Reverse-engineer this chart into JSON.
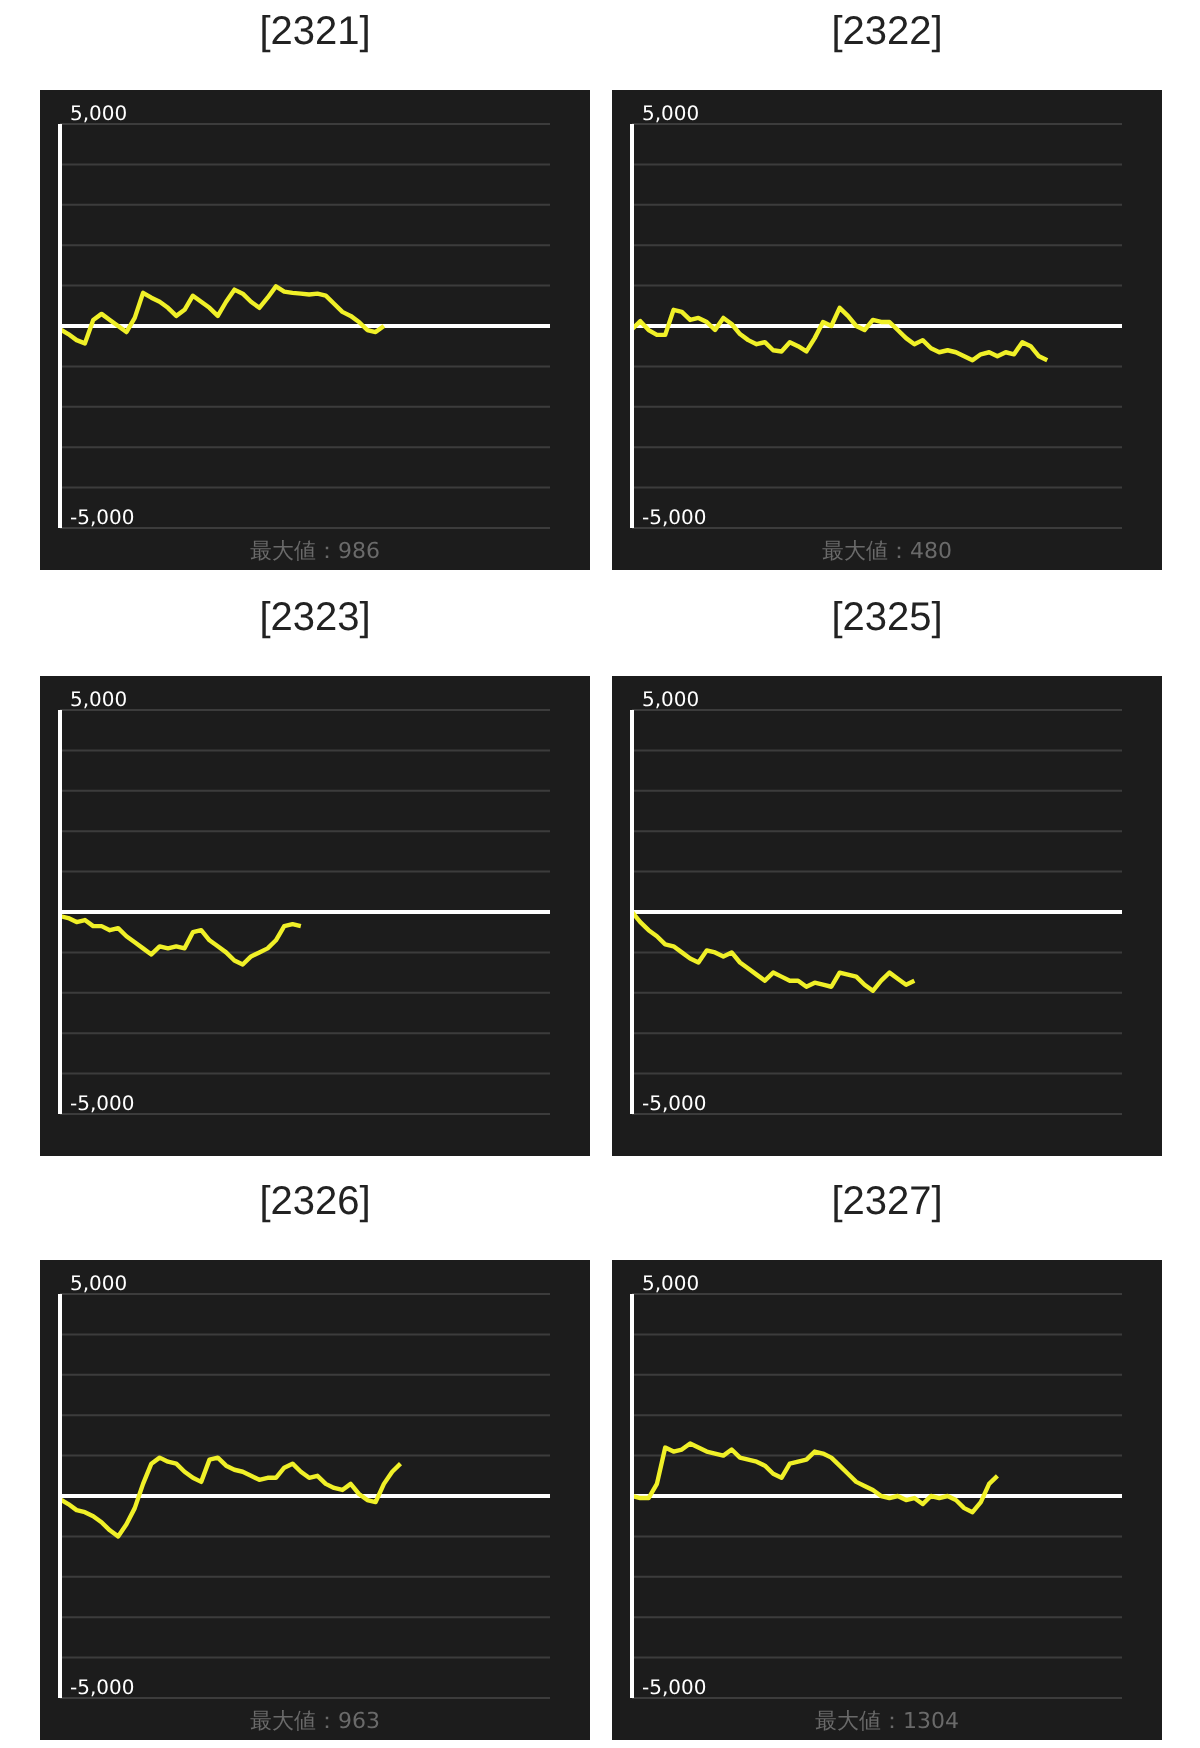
{
  "chart_data": [
    {
      "type": "line",
      "title": "[2321]",
      "categories": [
        null,
        null,
        null,
        null,
        null,
        null,
        null,
        null,
        null,
        null,
        null,
        null,
        null,
        null,
        null,
        null,
        null,
        null,
        null,
        null,
        null,
        null,
        null,
        null,
        null,
        null,
        null,
        null,
        null,
        null,
        null,
        null,
        null,
        null,
        null,
        null,
        null,
        null,
        null,
        null,
        null,
        null,
        null,
        null,
        null,
        null,
        null,
        null,
        null,
        null,
        null,
        null,
        null,
        null,
        null,
        null,
        null,
        null,
        null,
        null
      ],
      "series": [
        {
          "color": "#f0f028",
          "values": [
            -80,
            -200,
            -350,
            -430,
            150,
            300,
            150,
            0,
            -150,
            200,
            820,
            700,
            600,
            450,
            250,
            400,
            750,
            600,
            450,
            250,
            600,
            900,
            800,
            600,
            450,
            700,
            980,
            850,
            820,
            800,
            780,
            800,
            750,
            550,
            350,
            250,
            100,
            -100,
            -150,
            0,
            null,
            null,
            null,
            null,
            null,
            null,
            null,
            null,
            null,
            null,
            null,
            null,
            null,
            null,
            null,
            null,
            null,
            null,
            null,
            null
          ]
        }
      ],
      "ylim": [
        -5000,
        5000
      ],
      "yticks": [
        {
          "value": -5000,
          "label": "-5,000"
        },
        {
          "value": -4000,
          "label": null
        },
        {
          "value": -3000,
          "label": null
        },
        {
          "value": -2000,
          "label": null
        },
        {
          "value": -1000,
          "label": null
        },
        {
          "value": 0,
          "label": null
        },
        {
          "value": 1000,
          "label": null
        },
        {
          "value": 2000,
          "label": null
        },
        {
          "value": 3000,
          "label": null
        },
        {
          "value": 4000,
          "label": null
        },
        {
          "value": 5000,
          "label": "5,000"
        }
      ],
      "tick_labels": "y",
      "grid": "y",
      "ref_lines": [
        {
          "axis": "y",
          "value": 0,
          "color": "#ffffff"
        }
      ],
      "annotations": [
        "最大値：986"
      ]
    },
    {
      "type": "line",
      "title": "[2322]",
      "categories": [
        null,
        null,
        null,
        null,
        null,
        null,
        null,
        null,
        null,
        null,
        null,
        null,
        null,
        null,
        null,
        null,
        null,
        null,
        null,
        null,
        null,
        null,
        null,
        null,
        null,
        null,
        null,
        null,
        null,
        null,
        null,
        null,
        null,
        null,
        null,
        null,
        null,
        null,
        null,
        null,
        null,
        null,
        null,
        null,
        null,
        null,
        null,
        null,
        null,
        null,
        null,
        null,
        null,
        null,
        null,
        null,
        null,
        null,
        null,
        null
      ],
      "series": [
        {
          "color": "#f0f028",
          "values": [
            -80,
            120,
            -100,
            -220,
            -220,
            400,
            350,
            150,
            200,
            100,
            -100,
            200,
            50,
            -200,
            -350,
            -450,
            -400,
            -600,
            -630,
            -400,
            -500,
            -630,
            -300,
            100,
            0,
            450,
            250,
            0,
            -100,
            150,
            100,
            100,
            -100,
            -300,
            -450,
            -350,
            -550,
            -650,
            -600,
            -650,
            -750,
            -850,
            -700,
            -650,
            -750,
            -650,
            -700,
            -400,
            -500,
            -750,
            -850,
            null,
            null,
            null,
            null,
            null,
            null,
            null,
            null,
            null
          ]
        }
      ],
      "ylim": [
        -5000,
        5000
      ],
      "yticks": [
        {
          "value": -5000,
          "label": "-5,000"
        },
        {
          "value": -4000,
          "label": null
        },
        {
          "value": -3000,
          "label": null
        },
        {
          "value": -2000,
          "label": null
        },
        {
          "value": -1000,
          "label": null
        },
        {
          "value": 0,
          "label": null
        },
        {
          "value": 1000,
          "label": null
        },
        {
          "value": 2000,
          "label": null
        },
        {
          "value": 3000,
          "label": null
        },
        {
          "value": 4000,
          "label": null
        },
        {
          "value": 5000,
          "label": "5,000"
        }
      ],
      "tick_labels": "y",
      "grid": "y",
      "ref_lines": [
        {
          "axis": "y",
          "value": 0,
          "color": "#ffffff"
        }
      ],
      "annotations": [
        "最大値：480"
      ]
    },
    {
      "type": "line",
      "title": "[2323]",
      "categories": [
        null,
        null,
        null,
        null,
        null,
        null,
        null,
        null,
        null,
        null,
        null,
        null,
        null,
        null,
        null,
        null,
        null,
        null,
        null,
        null,
        null,
        null,
        null,
        null,
        null,
        null,
        null,
        null,
        null,
        null,
        null,
        null,
        null,
        null,
        null,
        null,
        null,
        null,
        null,
        null,
        null,
        null,
        null,
        null,
        null,
        null,
        null,
        null,
        null,
        null,
        null,
        null,
        null,
        null,
        null,
        null,
        null,
        null,
        null,
        null
      ],
      "series": [
        {
          "color": "#f0f028",
          "values": [
            -100,
            -150,
            -250,
            -200,
            -350,
            -350,
            -450,
            -400,
            -600,
            -750,
            -900,
            -1050,
            -850,
            -900,
            -850,
            -900,
            -500,
            -450,
            -700,
            -850,
            -1000,
            -1200,
            -1300,
            -1100,
            -1000,
            -900,
            -700,
            -350,
            -300,
            -350,
            null,
            null,
            null,
            null,
            null,
            null,
            null,
            null,
            null,
            null,
            null,
            null,
            null,
            null,
            null,
            null,
            null,
            null,
            null,
            null,
            null,
            null,
            null,
            null,
            null,
            null,
            null,
            null,
            null,
            null
          ]
        }
      ],
      "ylim": [
        -5000,
        5000
      ],
      "yticks": [
        {
          "value": -5000,
          "label": "-5,000"
        },
        {
          "value": -4000,
          "label": null
        },
        {
          "value": -3000,
          "label": null
        },
        {
          "value": -2000,
          "label": null
        },
        {
          "value": -1000,
          "label": null
        },
        {
          "value": 0,
          "label": null
        },
        {
          "value": 1000,
          "label": null
        },
        {
          "value": 2000,
          "label": null
        },
        {
          "value": 3000,
          "label": null
        },
        {
          "value": 4000,
          "label": null
        },
        {
          "value": 5000,
          "label": "5,000"
        }
      ],
      "tick_labels": "y",
      "grid": "y",
      "ref_lines": [
        {
          "axis": "y",
          "value": 0,
          "color": "#ffffff"
        }
      ]
    },
    {
      "type": "line",
      "title": "[2325]",
      "categories": [
        null,
        null,
        null,
        null,
        null,
        null,
        null,
        null,
        null,
        null,
        null,
        null,
        null,
        null,
        null,
        null,
        null,
        null,
        null,
        null,
        null,
        null,
        null,
        null,
        null,
        null,
        null,
        null,
        null,
        null,
        null,
        null,
        null,
        null,
        null,
        null,
        null,
        null,
        null,
        null,
        null,
        null,
        null,
        null,
        null,
        null,
        null,
        null,
        null,
        null,
        null,
        null,
        null,
        null,
        null,
        null,
        null,
        null,
        null,
        null
      ],
      "series": [
        {
          "color": "#f0f028",
          "values": [
            0,
            -250,
            -450,
            -600,
            -800,
            -850,
            -1000,
            -1150,
            -1250,
            -950,
            -1000,
            -1100,
            -1000,
            -1250,
            -1400,
            -1550,
            -1700,
            -1500,
            -1600,
            -1700,
            -1700,
            -1850,
            -1750,
            -1800,
            -1850,
            -1500,
            -1550,
            -1600,
            -1800,
            -1950,
            -1700,
            -1500,
            -1650,
            -1800,
            -1700,
            null,
            null,
            null,
            null,
            null,
            null,
            null,
            null,
            null,
            null,
            null,
            null,
            null,
            null,
            null,
            null,
            null,
            null,
            null,
            null,
            null,
            null,
            null,
            null,
            null
          ]
        }
      ],
      "ylim": [
        -5000,
        5000
      ],
      "yticks": [
        {
          "value": -5000,
          "label": "-5,000"
        },
        {
          "value": -4000,
          "label": null
        },
        {
          "value": -3000,
          "label": null
        },
        {
          "value": -2000,
          "label": null
        },
        {
          "value": -1000,
          "label": null
        },
        {
          "value": 0,
          "label": null
        },
        {
          "value": 1000,
          "label": null
        },
        {
          "value": 2000,
          "label": null
        },
        {
          "value": 3000,
          "label": null
        },
        {
          "value": 4000,
          "label": null
        },
        {
          "value": 5000,
          "label": "5,000"
        }
      ],
      "tick_labels": "y",
      "grid": "y",
      "ref_lines": [
        {
          "axis": "y",
          "value": 0,
          "color": "#ffffff"
        }
      ]
    },
    {
      "type": "line",
      "title": "[2326]",
      "categories": [
        null,
        null,
        null,
        null,
        null,
        null,
        null,
        null,
        null,
        null,
        null,
        null,
        null,
        null,
        null,
        null,
        null,
        null,
        null,
        null,
        null,
        null,
        null,
        null,
        null,
        null,
        null,
        null,
        null,
        null,
        null,
        null,
        null,
        null,
        null,
        null,
        null,
        null,
        null,
        null,
        null,
        null,
        null,
        null,
        null,
        null,
        null,
        null,
        null,
        null,
        null,
        null,
        null,
        null,
        null,
        null,
        null,
        null,
        null,
        null
      ],
      "series": [
        {
          "color": "#f0f028",
          "values": [
            -80,
            -200,
            -350,
            -400,
            -500,
            -650,
            -850,
            -1000,
            -700,
            -300,
            300,
            800,
            950,
            850,
            800,
            600,
            450,
            350,
            900,
            950,
            750,
            650,
            600,
            500,
            400,
            450,
            450,
            700,
            800,
            600,
            450,
            500,
            300,
            200,
            150,
            300,
            50,
            -100,
            -150,
            300,
            600,
            800,
            null,
            null,
            null,
            null,
            null,
            null,
            null,
            null,
            null,
            null,
            null,
            null,
            null,
            null,
            null,
            null,
            null,
            null
          ]
        }
      ],
      "ylim": [
        -5000,
        5000
      ],
      "yticks": [
        {
          "value": -5000,
          "label": "-5,000"
        },
        {
          "value": -4000,
          "label": null
        },
        {
          "value": -3000,
          "label": null
        },
        {
          "value": -2000,
          "label": null
        },
        {
          "value": -1000,
          "label": null
        },
        {
          "value": 0,
          "label": null
        },
        {
          "value": 1000,
          "label": null
        },
        {
          "value": 2000,
          "label": null
        },
        {
          "value": 3000,
          "label": null
        },
        {
          "value": 4000,
          "label": null
        },
        {
          "value": 5000,
          "label": "5,000"
        }
      ],
      "tick_labels": "y",
      "grid": "y",
      "ref_lines": [
        {
          "axis": "y",
          "value": 0,
          "color": "#ffffff"
        }
      ],
      "annotations": [
        "最大値：963"
      ]
    },
    {
      "type": "line",
      "title": "[2327]",
      "categories": [
        null,
        null,
        null,
        null,
        null,
        null,
        null,
        null,
        null,
        null,
        null,
        null,
        null,
        null,
        null,
        null,
        null,
        null,
        null,
        null,
        null,
        null,
        null,
        null,
        null,
        null,
        null,
        null,
        null,
        null,
        null,
        null,
        null,
        null,
        null,
        null,
        null,
        null,
        null,
        null,
        null,
        null,
        null,
        null,
        null,
        null,
        null,
        null,
        null,
        null,
        null,
        null,
        null,
        null,
        null,
        null,
        null,
        null,
        null,
        null
      ],
      "series": [
        {
          "color": "#f0f028",
          "values": [
            0,
            -50,
            -50,
            300,
            1200,
            1100,
            1150,
            1300,
            1200,
            1100,
            1050,
            1000,
            1150,
            950,
            900,
            850,
            750,
            550,
            450,
            800,
            850,
            900,
            1100,
            1050,
            950,
            750,
            550,
            350,
            250,
            150,
            0,
            -50,
            0,
            -100,
            -50,
            -200,
            0,
            -50,
            0,
            -100,
            -300,
            -400,
            -150,
            300,
            500,
            null,
            null,
            null,
            null,
            null,
            null,
            null,
            null,
            null,
            null,
            null,
            null,
            null,
            null,
            null
          ]
        }
      ],
      "ylim": [
        -5000,
        5000
      ],
      "yticks": [
        {
          "value": -5000,
          "label": "-5,000"
        },
        {
          "value": -4000,
          "label": null
        },
        {
          "value": -3000,
          "label": null
        },
        {
          "value": -2000,
          "label": null
        },
        {
          "value": -1000,
          "label": null
        },
        {
          "value": 0,
          "label": null
        },
        {
          "value": 1000,
          "label": null
        },
        {
          "value": 2000,
          "label": null
        },
        {
          "value": 3000,
          "label": null
        },
        {
          "value": 4000,
          "label": null
        },
        {
          "value": 5000,
          "label": "5,000"
        }
      ],
      "tick_labels": "y",
      "grid": "y",
      "ref_lines": [
        {
          "axis": "y",
          "value": 0,
          "color": "#ffffff"
        }
      ],
      "annotations": [
        "最大値：1304"
      ]
    }
  ]
}
